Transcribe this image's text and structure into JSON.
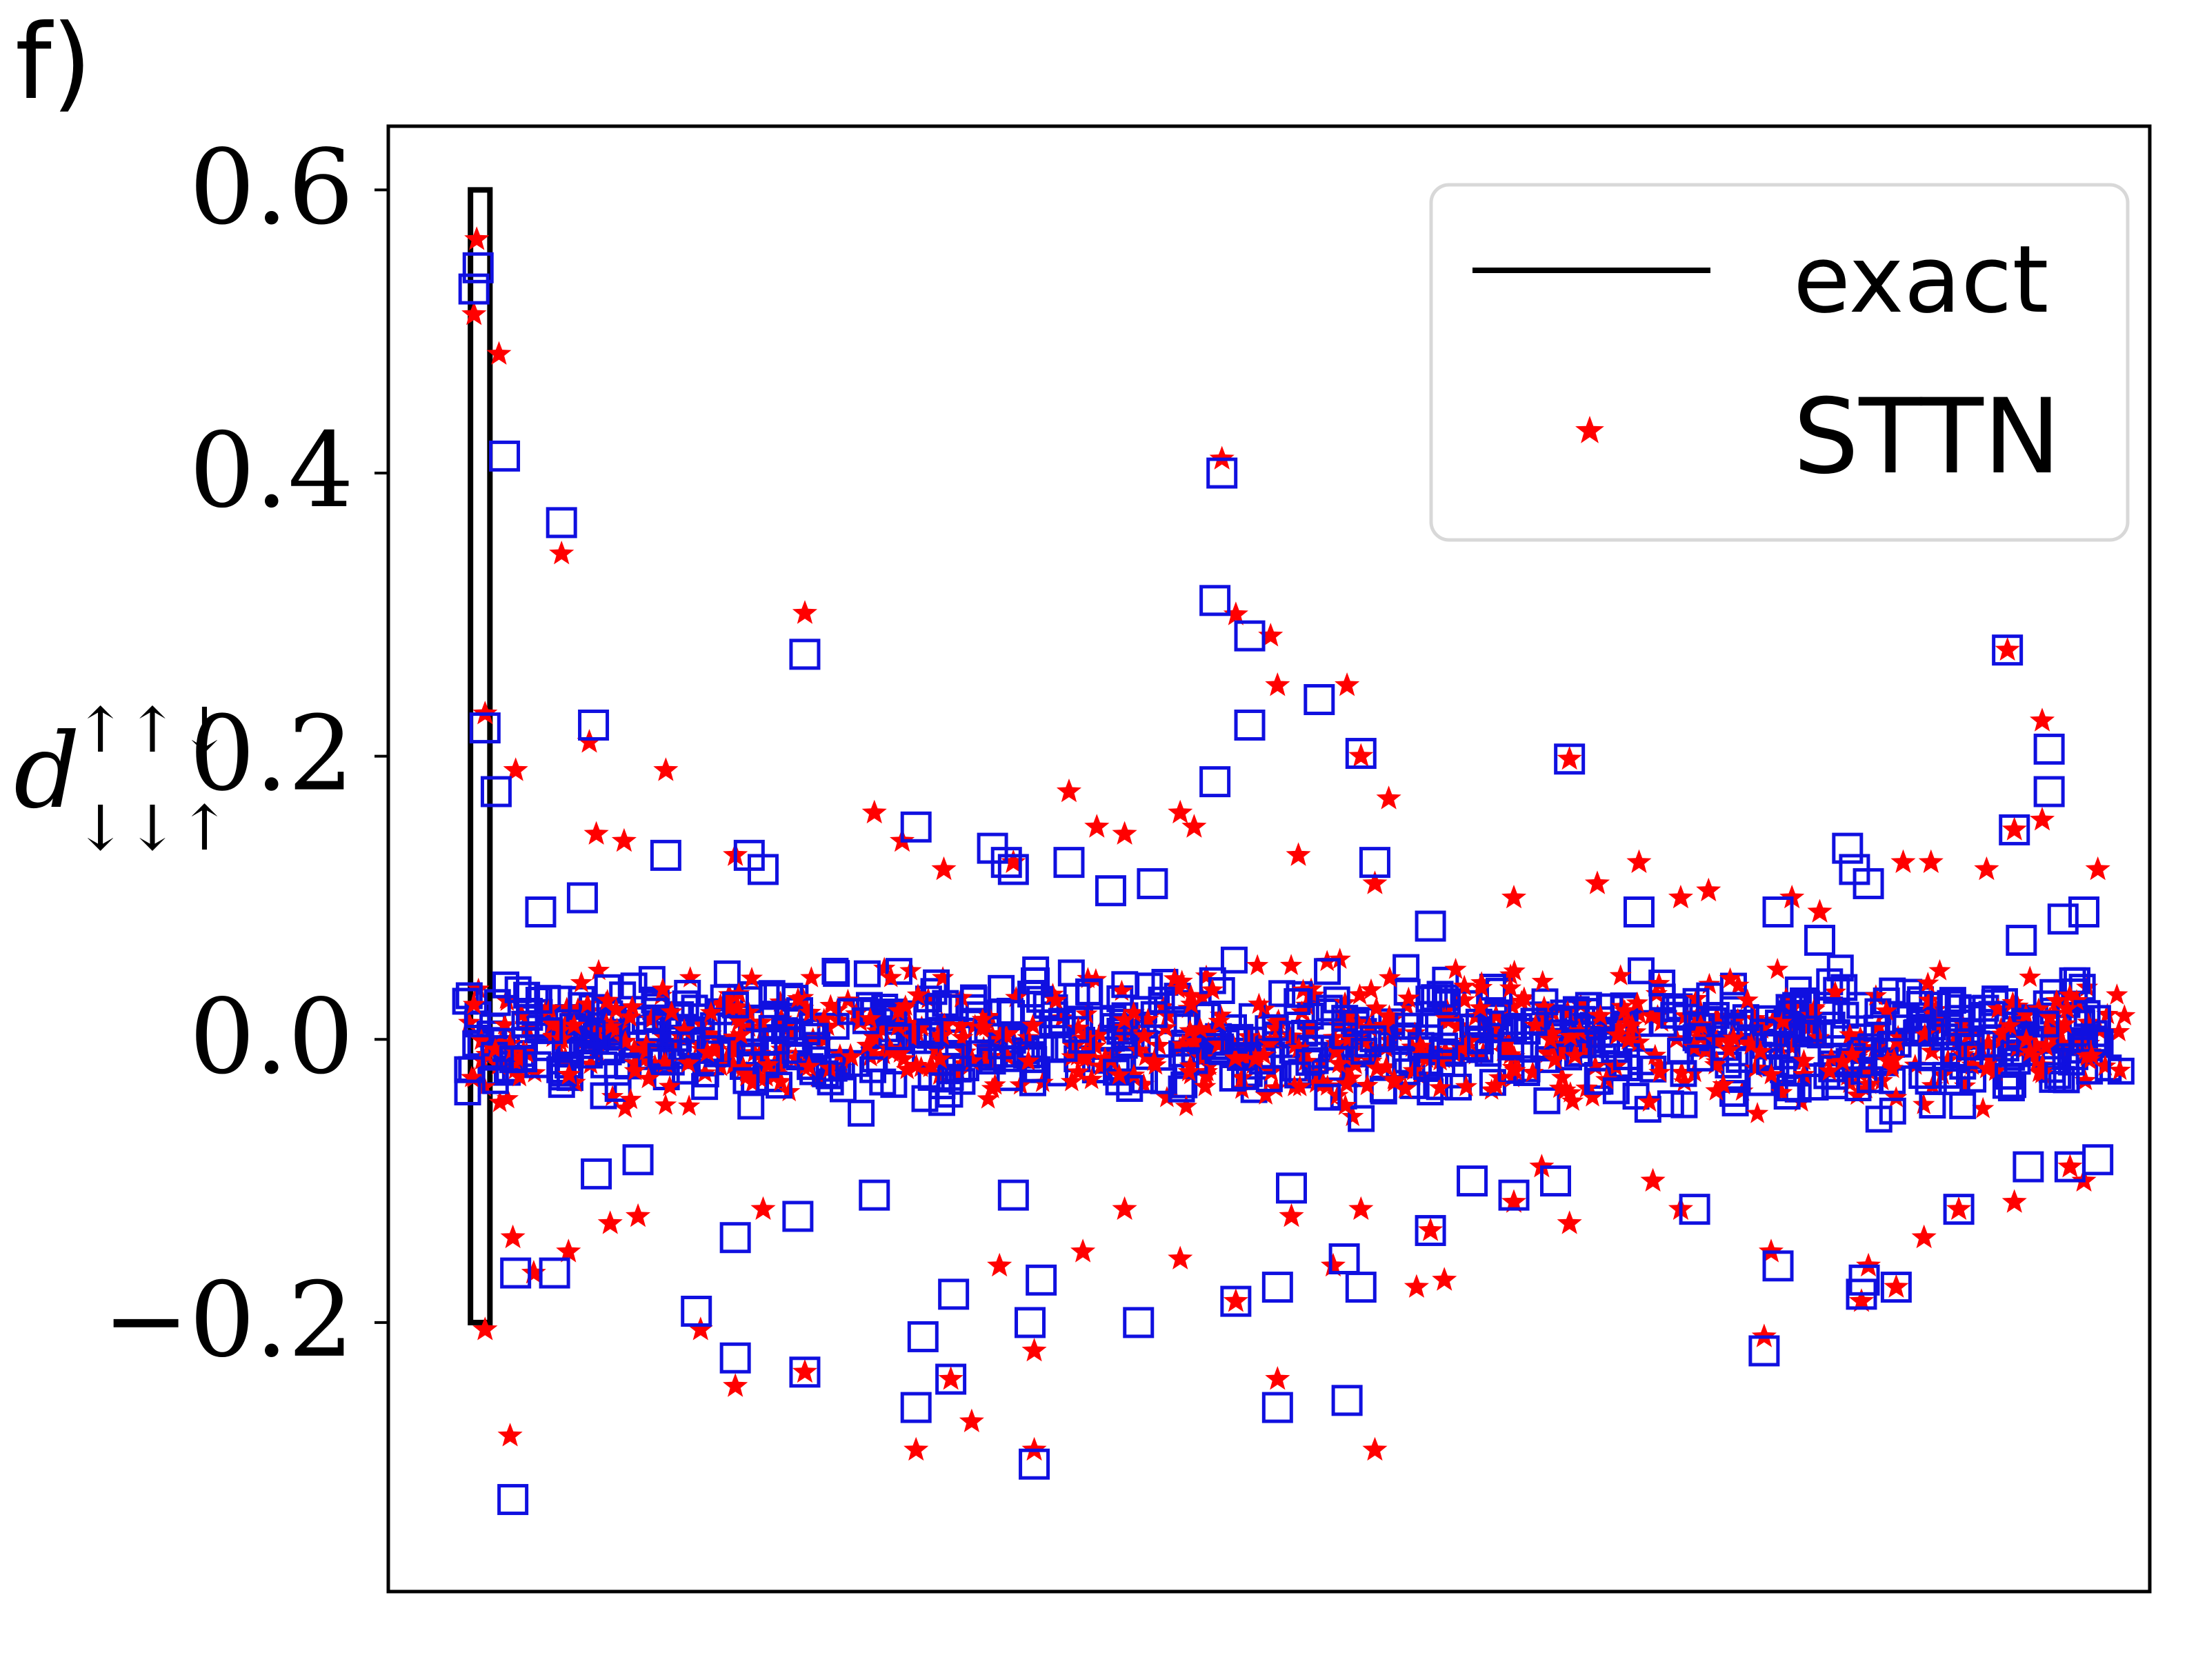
{
  "panel_label": "f)",
  "chart_data": {
    "type": "scatter",
    "title": "",
    "xlabel": "",
    "ylabel": "d",
    "ylabel_superscript": "↑↑↓",
    "ylabel_subscript": "↓↓↑",
    "ylim": [
      -0.39,
      0.645
    ],
    "xlim": [
      0,
      1200
    ],
    "x_ticks_visible": false,
    "y_ticks": [
      {
        "value": -0.2,
        "label": "−0.2"
      },
      {
        "value": 0.0,
        "label": "0.0"
      },
      {
        "value": 0.2,
        "label": "0.2"
      },
      {
        "value": 0.4,
        "label": "0.4"
      },
      {
        "value": 0.6,
        "label": "0.6"
      }
    ],
    "grid": false,
    "legend_position": "top-right",
    "colors": {
      "exact": "#000000",
      "sttn": "#ff0000",
      "squares": "#1010e0"
    },
    "series": [
      {
        "name": "exact",
        "kind": "vertical-lines",
        "x": [
          11,
          12,
          13,
          14,
          15,
          16,
          17,
          18,
          19,
          20,
          21,
          22
        ],
        "y_range": [
          -0.2,
          0.6
        ]
      },
      {
        "name": "STTN",
        "kind": "red-star",
        "points": [
          [
            12,
            0.512
          ],
          [
            14,
            0.565
          ],
          [
            20,
            0.23
          ],
          [
            30,
            0.484
          ],
          [
            42,
            0.19
          ],
          [
            20,
            -0.205
          ],
          [
            38,
            -0.28
          ],
          [
            75,
            0.343
          ],
          [
            95,
            0.21
          ],
          [
            150,
            0.19
          ],
          [
            250,
            0.301
          ],
          [
            550,
            0.41
          ],
          [
            560,
            0.3
          ],
          [
            585,
            0.285
          ],
          [
            590,
            0.25
          ],
          [
            640,
            0.25
          ],
          [
            650,
            0.2
          ],
          [
            670,
            0.17
          ],
          [
            800,
            0.198
          ],
          [
            1115,
            0.275
          ],
          [
            1140,
            0.225
          ],
          [
            1140,
            0.155
          ],
          [
            1120,
            0.148
          ],
          [
            175,
            -0.205
          ],
          [
            200,
            -0.245
          ],
          [
            250,
            -0.235
          ],
          [
            330,
            -0.29
          ],
          [
            355,
            -0.24
          ],
          [
            370,
            -0.27
          ],
          [
            415,
            -0.29
          ],
          [
            415,
            -0.22
          ],
          [
            560,
            -0.185
          ],
          [
            590,
            -0.24
          ],
          [
            630,
            -0.16
          ],
          [
            660,
            -0.29
          ],
          [
            690,
            -0.175
          ],
          [
            710,
            -0.17
          ],
          [
            940,
            -0.21
          ],
          [
            945,
            -0.15
          ],
          [
            1010,
            -0.185
          ],
          [
            1015,
            -0.16
          ],
          [
            1035,
            -0.175
          ],
          [
            1055,
            -0.14
          ],
          [
            40,
            -0.14
          ],
          [
            55,
            -0.165
          ],
          [
            80,
            -0.15
          ],
          [
            110,
            -0.13
          ],
          [
            390,
            -0.16
          ],
          [
            450,
            -0.15
          ],
          [
            480,
            -0.12
          ],
          [
            520,
            -0.155
          ],
          [
            300,
            0.16
          ],
          [
            320,
            0.14
          ],
          [
            440,
            0.175
          ],
          [
            460,
            0.15
          ],
          [
            480,
            0.145
          ],
          [
            520,
            0.16
          ],
          [
            530,
            0.15
          ],
          [
            605,
            0.13
          ],
          [
            660,
            0.11
          ],
          [
            850,
            0.125
          ],
          [
            880,
            0.1
          ],
          [
            1040,
            0.125
          ],
          [
            1060,
            0.125
          ],
          [
            1100,
            0.12
          ],
          [
            1180,
            0.12
          ],
          [
            100,
            0.145
          ],
          [
            120,
            0.14
          ],
          [
            200,
            0.13
          ],
          [
            350,
            0.12
          ],
          [
            400,
            0.125
          ],
          [
            900,
            0.105
          ],
          [
            820,
            0.11
          ],
          [
            760,
            0.1
          ],
          [
            960,
            0.1
          ],
          [
            980,
            0.09
          ],
          [
            130,
            -0.125
          ],
          [
            220,
            -0.12
          ],
          [
            600,
            -0.125
          ],
          [
            650,
            -0.12
          ],
          [
            700,
            -0.135
          ],
          [
            760,
            -0.115
          ],
          [
            800,
            -0.13
          ],
          [
            1170,
            -0.1
          ],
          [
            1160,
            -0.09
          ],
          [
            1080,
            -0.12
          ],
          [
            1120,
            -0.115
          ],
          [
            860,
            -0.1
          ],
          [
            780,
            -0.09
          ],
          [
            880,
            -0.12
          ]
        ]
      },
      {
        "name": "",
        "kind": "blue-square",
        "points": [
          [
            12,
            0.53
          ],
          [
            15,
            0.545
          ],
          [
            20,
            0.22
          ],
          [
            34,
            0.412
          ],
          [
            28,
            0.175
          ],
          [
            75,
            0.365
          ],
          [
            98,
            0.222
          ],
          [
            250,
            0.272
          ],
          [
            550,
            0.4
          ],
          [
            545,
            0.31
          ],
          [
            570,
            0.285
          ],
          [
            570,
            0.222
          ],
          [
            545,
            0.182
          ],
          [
            620,
            0.24
          ],
          [
            650,
            0.202
          ],
          [
            800,
            0.198
          ],
          [
            1115,
            0.275
          ],
          [
            1120,
            0.148
          ],
          [
            1145,
            0.205
          ],
          [
            1145,
            0.175
          ],
          [
            40,
            -0.325
          ],
          [
            42,
            -0.165
          ],
          [
            70,
            -0.165
          ],
          [
            172,
            -0.192
          ],
          [
            200,
            -0.225
          ],
          [
            250,
            -0.235
          ],
          [
            330,
            -0.26
          ],
          [
            335,
            -0.21
          ],
          [
            355,
            -0.24
          ],
          [
            357,
            -0.18
          ],
          [
            415,
            -0.3
          ],
          [
            412,
            -0.2
          ],
          [
            420,
            -0.17
          ],
          [
            490,
            -0.2
          ],
          [
            560,
            -0.185
          ],
          [
            590,
            -0.26
          ],
          [
            590,
            -0.175
          ],
          [
            638,
            -0.155
          ],
          [
            640,
            -0.255
          ],
          [
            650,
            -0.175
          ],
          [
            940,
            -0.22
          ],
          [
            950,
            -0.16
          ],
          [
            1012,
            -0.17
          ],
          [
            1010,
            -0.18
          ],
          [
            1035,
            -0.175
          ],
          [
            440,
            0.125
          ],
          [
            470,
            0.105
          ],
          [
            500,
            0.11
          ],
          [
            1000,
            0.135
          ],
          [
            1005,
            0.12
          ],
          [
            1015,
            0.11
          ],
          [
            210,
            0.13
          ],
          [
            220,
            0.12
          ],
          [
            330,
            0.15
          ],
          [
            385,
            0.135
          ],
          [
            395,
            0.125
          ],
          [
            400,
            0.12
          ],
          [
            660,
            0.125
          ],
          [
            150,
            0.13
          ],
          [
            850,
            0.09
          ],
          [
            950,
            0.09
          ],
          [
            1125,
            0.07
          ],
          [
            1155,
            0.085
          ],
          [
            1170,
            0.09
          ],
          [
            200,
            -0.14
          ],
          [
            245,
            -0.125
          ],
          [
            300,
            -0.11
          ],
          [
            400,
            -0.11
          ],
          [
            730,
            -0.1
          ],
          [
            790,
            -0.1
          ],
          [
            890,
            -0.12
          ],
          [
            1160,
            -0.09
          ],
          [
            1180,
            -0.085
          ],
          [
            1080,
            -0.12
          ],
          [
            1130,
            -0.09
          ],
          [
            100,
            -0.095
          ],
          [
            130,
            -0.085
          ],
          [
            600,
            -0.105
          ],
          [
            700,
            -0.135
          ],
          [
            760,
            -0.11
          ],
          [
            60,
            0.09
          ],
          [
            90,
            0.1
          ],
          [
            700,
            0.08
          ],
          [
            980,
            0.07
          ]
        ]
      }
    ],
    "dense_band": {
      "x_range": [
        5,
        1200
      ],
      "y_range": [
        -0.065,
        0.065
      ],
      "n_points": 1400
    }
  },
  "legend": {
    "items": [
      {
        "label": "exact",
        "marker": "line"
      },
      {
        "label": "STTN",
        "marker": "star"
      }
    ]
  }
}
